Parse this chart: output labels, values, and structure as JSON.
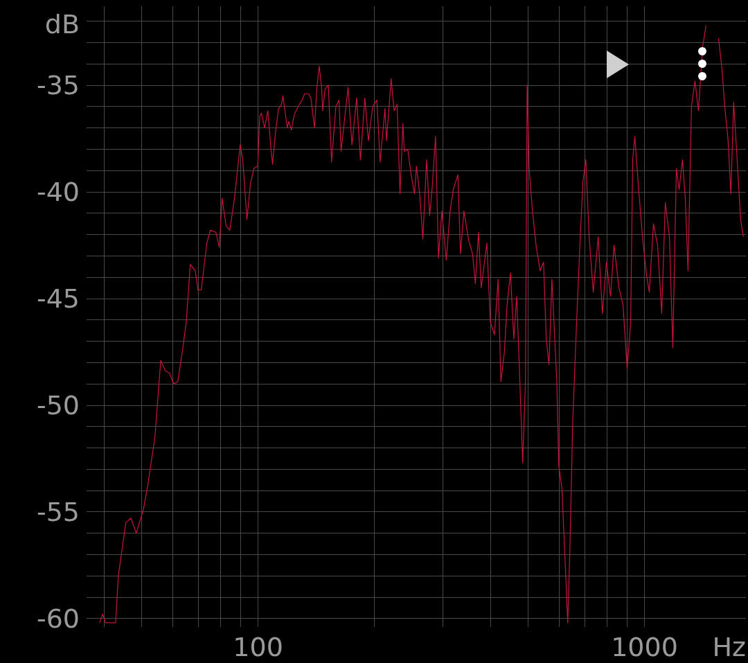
{
  "chart_data": {
    "type": "line",
    "xlabel": "Hz",
    "ylabel": "dB",
    "log": "x",
    "grid": true,
    "marker": "none",
    "line_style": "solid",
    "xlim": [
      36,
      1830
    ],
    "ylim": [
      -60.4,
      -31.3
    ],
    "xticks": [
      {
        "value": 40,
        "label": null
      },
      {
        "value": 50,
        "label": null
      },
      {
        "value": 60,
        "label": null
      },
      {
        "value": 70,
        "label": null
      },
      {
        "value": 80,
        "label": null
      },
      {
        "value": 90,
        "label": null
      },
      100,
      {
        "value": 200,
        "label": null
      },
      {
        "value": 300,
        "label": null
      },
      {
        "value": 400,
        "label": null
      },
      {
        "value": 500,
        "label": null
      },
      {
        "value": 600,
        "label": null
      },
      {
        "value": 700,
        "label": null
      },
      {
        "value": 800,
        "label": null
      },
      {
        "value": 900,
        "label": null
      },
      1000
    ],
    "yticks": [
      -60,
      {
        "value": -59,
        "label": null
      },
      {
        "value": -58,
        "label": null
      },
      {
        "value": -57,
        "label": null
      },
      {
        "value": -56,
        "label": null
      },
      -55,
      {
        "value": -54,
        "label": null
      },
      {
        "value": -53,
        "label": null
      },
      {
        "value": -52,
        "label": null
      },
      {
        "value": -51,
        "label": null
      },
      -50,
      {
        "value": -49,
        "label": null
      },
      {
        "value": -48,
        "label": null
      },
      {
        "value": -47,
        "label": null
      },
      {
        "value": -46,
        "label": null
      },
      -45,
      {
        "value": -44,
        "label": null
      },
      {
        "value": -43,
        "label": null
      },
      {
        "value": -42,
        "label": null
      },
      {
        "value": -41,
        "label": null
      },
      -40,
      {
        "value": -39,
        "label": null
      },
      {
        "value": -38,
        "label": null
      },
      {
        "value": -37,
        "label": null
      },
      {
        "value": -36,
        "label": null
      },
      -35,
      {
        "value": -34,
        "label": null
      },
      {
        "value": -33,
        "label": null
      },
      {
        "value": -32,
        "label": null
      }
    ],
    "series": [
      {
        "color": "#c8143c",
        "x": [
          38.9,
          39.6,
          40.3,
          42.8,
          43.5,
          45.5,
          46.9,
          48.4,
          50.5,
          51.9,
          54.1,
          56.0,
          57.6,
          59.0,
          60.5,
          62.0,
          63.8,
          65.2,
          66.8,
          68.8,
          69.9,
          71.3,
          73.7,
          75.3,
          77.8,
          79.4,
          80.7,
          82.7,
          84.5,
          86.9,
          89.9,
          91.3,
          93.6,
          95.6,
          97.6,
          99.8,
          101,
          102,
          104,
          106,
          108,
          109,
          111,
          113,
          115,
          116,
          119,
          120,
          122,
          124,
          127,
          130,
          132,
          135,
          137,
          140,
          142,
          144,
          146,
          147,
          149,
          152,
          155,
          159,
          162,
          164,
          171,
          175,
          180,
          184,
          189,
          193,
          198,
          203,
          207,
          213,
          215,
          221,
          225,
          229,
          233,
          237,
          239,
          244,
          249,
          254,
          257,
          262,
          267,
          273,
          278,
          282,
          288,
          293,
          299,
          307,
          314,
          320,
          329,
          334,
          341,
          351,
          359,
          365,
          372,
          378,
          391,
          399,
          409,
          418,
          425,
          434,
          441,
          450,
          459,
          467,
          475,
          484,
          492,
          497,
          503,
          513,
          524,
          537,
          548,
          557,
          566,
          576,
          593,
          600,
          612,
          620,
          633,
          641,
          652,
          668,
          682,
          693,
          705,
          719,
          737,
          759,
          778,
          797,
          817,
          834,
          859,
          880,
          902,
          921,
          932,
          944,
          964,
          988,
          1012,
          1029,
          1055,
          1081,
          1108,
          1132,
          1160,
          1184,
          1209,
          1229,
          1254,
          1275,
          1296,
          1323,
          1351,
          1379,
          1414,
          1443,
          1473,
          1504,
          1522,
          1554,
          1586,
          1613,
          1646,
          1673,
          1701,
          1737,
          1773,
          1802
        ],
        "values": [
          -60.2,
          -59.8,
          -60.2,
          -60.2,
          -58.0,
          -55.5,
          -55.3,
          -56.0,
          -54.9,
          -53.7,
          -51.5,
          -47.9,
          -48.4,
          -48.5,
          -49.0,
          -48.9,
          -47.4,
          -46.1,
          -43.4,
          -43.7,
          -44.6,
          -44.6,
          -42.4,
          -41.8,
          -41.9,
          -42.6,
          -40.3,
          -41.6,
          -41.8,
          -40.3,
          -37.8,
          -38.5,
          -41.3,
          -39.6,
          -38.9,
          -38.8,
          -36.5,
          -36.3,
          -37.0,
          -36.2,
          -38.0,
          -38.7,
          -37.2,
          -36.1,
          -35.9,
          -35.5,
          -37.0,
          -36.7,
          -37.1,
          -36.4,
          -36.0,
          -35.7,
          -35.4,
          -35.4,
          -35.6,
          -37.0,
          -35.1,
          -34.1,
          -35.1,
          -36.2,
          -35.2,
          -35.0,
          -38.6,
          -36.0,
          -35.7,
          -38.1,
          -35.1,
          -37.8,
          -35.6,
          -38.5,
          -35.6,
          -37.6,
          -36.0,
          -35.7,
          -38.6,
          -36.1,
          -37.6,
          -34.7,
          -36.2,
          -35.9,
          -40.1,
          -36.8,
          -38.1,
          -38.0,
          -39.2,
          -40.1,
          -38.8,
          -40.1,
          -42.2,
          -38.5,
          -41.1,
          -39.9,
          -37.4,
          -43.1,
          -40.9,
          -43.2,
          -40.9,
          -39.9,
          -39.2,
          -42.9,
          -40.9,
          -42.3,
          -42.9,
          -44.3,
          -41.9,
          -44.5,
          -42.4,
          -46.1,
          -46.7,
          -44.1,
          -48.9,
          -47.5,
          -45.3,
          -43.8,
          -46.9,
          -44.9,
          -48.5,
          -52.7,
          -48.9,
          -35.0,
          -38.9,
          -40.9,
          -42.5,
          -43.7,
          -43.3,
          -46.9,
          -48.1,
          -44.1,
          -48.9,
          -52.8,
          -54.0,
          -56.4,
          -60.2,
          -56.8,
          -50.8,
          -45.9,
          -42.1,
          -39.5,
          -38.5,
          -42.1,
          -44.7,
          -42.1,
          -45.7,
          -43.3,
          -44.9,
          -42.5,
          -44.5,
          -45.3,
          -48.3,
          -46.1,
          -38.5,
          -37.4,
          -39.7,
          -42.1,
          -43.9,
          -44.7,
          -41.5,
          -42.5,
          -45.7,
          -40.5,
          -42.1,
          -47.3,
          -38.9,
          -39.9,
          -38.5,
          -40.3,
          -43.7,
          -36.0,
          -34.8,
          -36.2,
          -33.2,
          -32.2,
          null,
          null,
          null,
          -32.8,
          -34.2,
          -36.0,
          -37.6,
          -40.1,
          -35.8,
          -38.5,
          -41.3,
          -42.1
        ]
      }
    ]
  }
}
